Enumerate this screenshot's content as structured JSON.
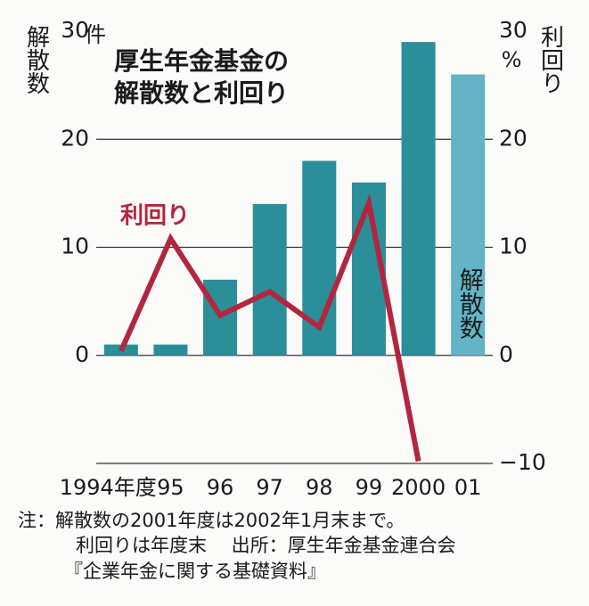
{
  "chart_data": {
    "type": "bar_line",
    "title": [
      "厚生年金基金の",
      "解散数と利回り"
    ],
    "ylabel": "解散数",
    "yunit": "件",
    "y2label": "利回り",
    "y2unit": "%",
    "categories": [
      "1994年度",
      "95",
      "96",
      "97",
      "98",
      "99",
      "2000",
      "01"
    ],
    "ylim": [
      -10,
      30
    ],
    "yticks": [
      0,
      10,
      20,
      30
    ],
    "y2lim": [
      -10,
      30
    ],
    "y2ticks": [
      {
        "value": -10,
        "label": "−10"
      },
      0,
      10,
      20,
      30
    ],
    "grid": true,
    "series": [
      {
        "name": "解散数",
        "type": "bar",
        "colors": [
          "#2a8f98",
          "#2a8f98",
          "#2a8f98",
          "#2a8f98",
          "#2a8f98",
          "#2a8f98",
          "#2a8f98",
          "#62b4c6"
        ],
        "values": [
          1,
          1,
          7,
          14,
          18,
          16,
          29,
          26
        ]
      },
      {
        "name": "利回り",
        "type": "line",
        "axis": "y2",
        "color": "#b3263f",
        "values": [
          0.4,
          10.8,
          3.7,
          5.9,
          2.6,
          14.1,
          -9.8,
          null
        ]
      }
    ],
    "notes": [
      "注：解散数の2001年度は2002年1月末まで。",
      "利回りは年度末　 出所：厚生年金基金連合会",
      "『企業年金に関する基礎資料』"
    ]
  }
}
